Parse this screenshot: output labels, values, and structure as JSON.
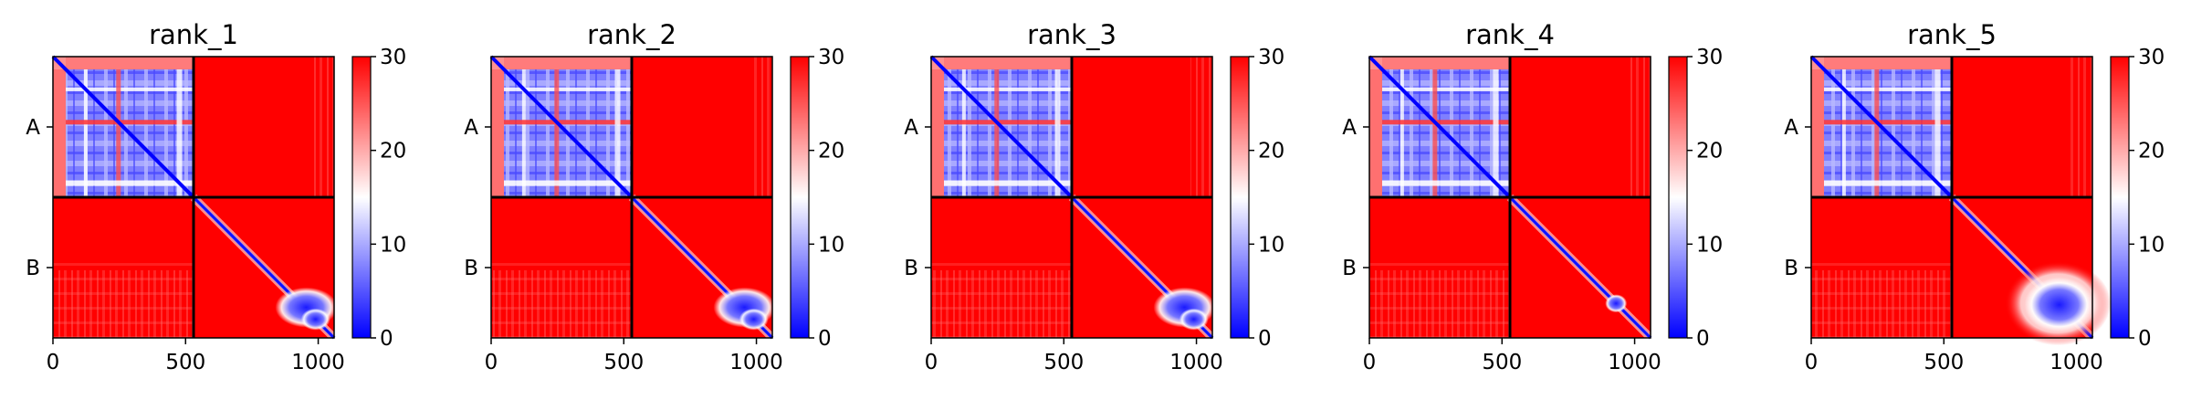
{
  "chart_data": [
    {
      "type": "heatmap",
      "title": "rank_1",
      "chains": [
        "A",
        "B"
      ],
      "chain_boundary": 530,
      "x_ticks": [
        0,
        500,
        1000
      ],
      "xlim": [
        0,
        1060
      ],
      "ylim": [
        1060,
        0
      ],
      "value_range": [
        0,
        30
      ],
      "colorbar_ticks": [
        0,
        10,
        20,
        30
      ],
      "colormap": [
        "#0000ff",
        "#ffffff",
        "#ff0000"
      ],
      "regions": [
        {
          "region": "A-A",
          "pattern": "mostly blue (low values ~5-15) with white/red horizontal and vertical streaks; blue diagonal"
        },
        {
          "region": "A-B",
          "pattern": "red (~30) with faint paler vertical streaks at right"
        },
        {
          "region": "B-A",
          "pattern": "red (~30) with faint paler vertical streaks at bottom"
        },
        {
          "region": "B-B",
          "pattern": "red (~30) with thin blue diagonal widening into blue blob near residues 900-1000"
        }
      ]
    },
    {
      "type": "heatmap",
      "title": "rank_2",
      "chains": [
        "A",
        "B"
      ],
      "chain_boundary": 530,
      "x_ticks": [
        0,
        500,
        1000
      ],
      "xlim": [
        0,
        1060
      ],
      "ylim": [
        1060,
        0
      ],
      "value_range": [
        0,
        30
      ],
      "colorbar_ticks": [
        0,
        10,
        20,
        30
      ],
      "colormap": [
        "#0000ff",
        "#ffffff",
        "#ff0000"
      ],
      "regions": [
        {
          "region": "A-A",
          "pattern": "mostly blue with white/red streaks; blue diagonal"
        },
        {
          "region": "A-B",
          "pattern": "red (~30) with faint paler vertical streaks"
        },
        {
          "region": "B-A",
          "pattern": "red (~30) with faint paler streaks"
        },
        {
          "region": "B-B",
          "pattern": "red with thin blue diagonal widening into blue blob near residues 880-1000"
        }
      ]
    },
    {
      "type": "heatmap",
      "title": "rank_3",
      "chains": [
        "A",
        "B"
      ],
      "chain_boundary": 530,
      "x_ticks": [
        0,
        500,
        1000
      ],
      "xlim": [
        0,
        1060
      ],
      "ylim": [
        1060,
        0
      ],
      "value_range": [
        0,
        30
      ],
      "colorbar_ticks": [
        0,
        10,
        20,
        30
      ],
      "colormap": [
        "#0000ff",
        "#ffffff",
        "#ff0000"
      ],
      "regions": [
        {
          "region": "A-A",
          "pattern": "mostly blue with white/red streaks; blue diagonal"
        },
        {
          "region": "A-B",
          "pattern": "red (~30)"
        },
        {
          "region": "B-A",
          "pattern": "red (~30) with faint paler streaks"
        },
        {
          "region": "B-B",
          "pattern": "red with thin blue diagonal widening into blue blob near residues 880-1000"
        }
      ]
    },
    {
      "type": "heatmap",
      "title": "rank_4",
      "chains": [
        "A",
        "B"
      ],
      "chain_boundary": 530,
      "x_ticks": [
        0,
        500,
        1000
      ],
      "xlim": [
        0,
        1060
      ],
      "ylim": [
        1060,
        0
      ],
      "value_range": [
        0,
        30
      ],
      "colorbar_ticks": [
        0,
        10,
        20,
        30
      ],
      "colormap": [
        "#0000ff",
        "#ffffff",
        "#ff0000"
      ],
      "regions": [
        {
          "region": "A-A",
          "pattern": "mostly blue with white/red streaks; blue diagonal"
        },
        {
          "region": "A-B",
          "pattern": "red (~30) with faint paler vertical streaks"
        },
        {
          "region": "B-A",
          "pattern": "red (~30) with faint paler streaks"
        },
        {
          "region": "B-B",
          "pattern": "red with thin blue diagonal and small blue blob near residue 930"
        }
      ]
    },
    {
      "type": "heatmap",
      "title": "rank_5",
      "chains": [
        "A",
        "B"
      ],
      "chain_boundary": 530,
      "x_ticks": [
        0,
        500,
        1000
      ],
      "xlim": [
        0,
        1060
      ],
      "ylim": [
        1060,
        0
      ],
      "value_range": [
        0,
        30
      ],
      "colorbar_ticks": [
        0,
        10,
        20,
        30
      ],
      "colormap": [
        "#0000ff",
        "#ffffff",
        "#ff0000"
      ],
      "regions": [
        {
          "region": "A-A",
          "pattern": "mostly blue with white/red streaks; blue diagonal"
        },
        {
          "region": "A-B",
          "pattern": "red (~30) with paler patches at top and vertical streaks"
        },
        {
          "region": "B-A",
          "pattern": "red (~30) with paler streaks"
        },
        {
          "region": "B-B",
          "pattern": "red with blue diagonal and large white/blue blob spanning residues 750-1050"
        }
      ]
    }
  ]
}
